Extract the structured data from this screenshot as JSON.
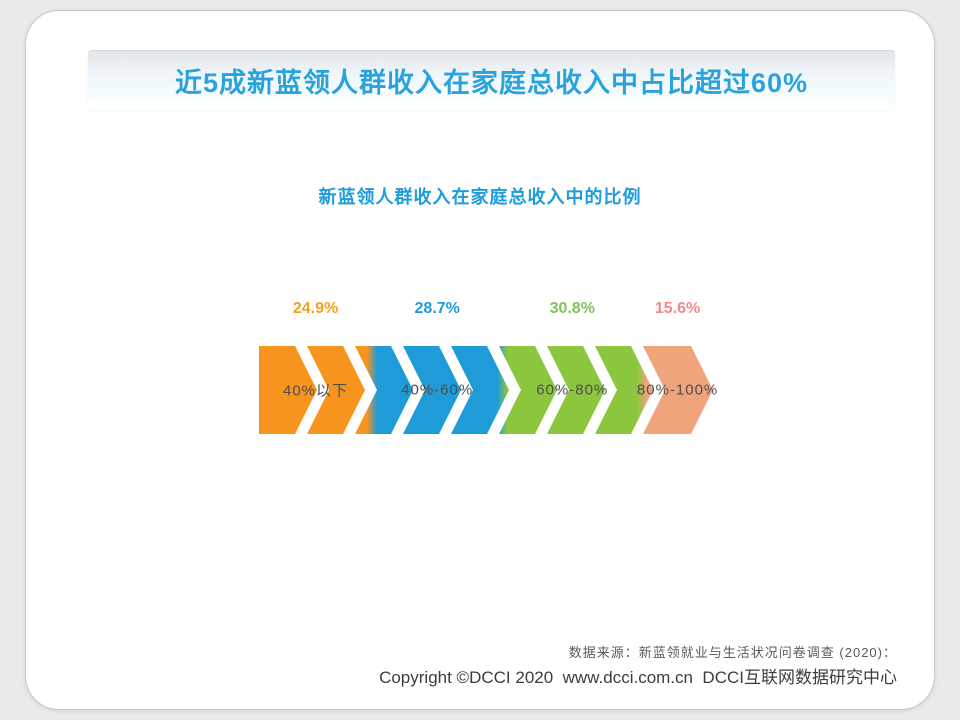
{
  "banner": {
    "title": "近5成新蓝领人群收入在家庭总收入中占比超过60%"
  },
  "chart": {
    "title": "新蓝领人群收入在家庭总收入中的比例"
  },
  "segments": [
    {
      "range_label": "40%以下",
      "pct_label": "24.9%",
      "value": 24.9,
      "fill": "#F7941E",
      "label_color": "#F7A01C"
    },
    {
      "range_label": "40%-60%",
      "pct_label": "28.7%",
      "value": 28.7,
      "fill": "#1F9CD8",
      "label_color": "#1F9CD8"
    },
    {
      "range_label": "60%-80%",
      "pct_label": "30.8%",
      "value": 30.8,
      "fill": "#8CC63F",
      "label_color": "#7DC45E"
    },
    {
      "range_label": "80%-100%",
      "pct_label": "15.6%",
      "value": 15.6,
      "fill": "#F0A47C",
      "label_color": "#F28B8B"
    }
  ],
  "chart_data": {
    "type": "bar",
    "variant": "proportional-chevron-arrow-strip",
    "orientation": "horizontal",
    "title": "新蓝领人群收入在家庭总收入中的比例",
    "categories": [
      "40%以下",
      "40%-60%",
      "60%-80%",
      "80%-100%"
    ],
    "values": [
      24.9,
      28.7,
      30.8,
      15.6
    ],
    "unit": "%",
    "total": 100,
    "colors": [
      "#F7941E",
      "#1F9CD8",
      "#8CC63F",
      "#F0A47C"
    ],
    "value_label_colors": [
      "#F7A01C",
      "#1F9CD8",
      "#7DC45E",
      "#F28B8B"
    ],
    "legend": "none",
    "grid": "off"
  },
  "footer": {
    "source": "数据来源：新蓝领就业与生活状况问卷调查 (2020)：",
    "copyright": "Copyright ©DCCI 2020  www.dcci.com.cn  DCCI互联网数据研究中心"
  },
  "colors": {
    "page_background": "#EAEAEA",
    "card_background": "#FFFFFF",
    "banner_text": "#2AA3DC",
    "chart_title_text": "#1E9CDB",
    "arrow_label_text": "#4D4D4D",
    "source_text": "#5A5A5A",
    "copyright_text": "#3D3D3D"
  }
}
